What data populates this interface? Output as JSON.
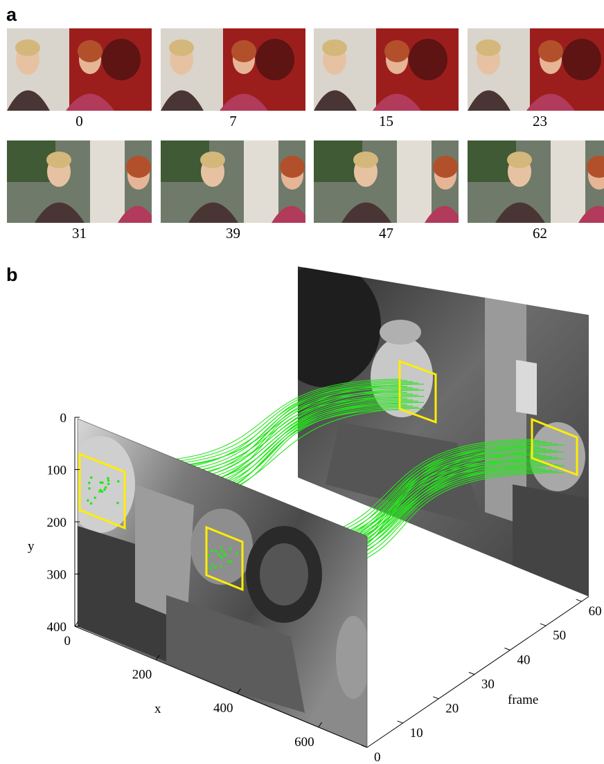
{
  "panel_a": {
    "label": "a",
    "frames": [
      {
        "frame": "0"
      },
      {
        "frame": "7"
      },
      {
        "frame": "15"
      },
      {
        "frame": "23"
      },
      {
        "frame": "31"
      },
      {
        "frame": "39"
      },
      {
        "frame": "47"
      },
      {
        "frame": "62"
      }
    ]
  },
  "panel_b": {
    "label": "b",
    "axes": {
      "y_label": "y",
      "x_label": "x",
      "z_label": "frame",
      "y_ticks": [
        "0",
        "100",
        "200",
        "300",
        "400"
      ],
      "x_ticks": [
        "0",
        "200",
        "400",
        "600"
      ],
      "z_ticks": [
        "0",
        "10",
        "20",
        "30",
        "40",
        "50",
        "60"
      ]
    }
  },
  "colors": {
    "track_green": "#27e51c",
    "face_box_yellow": "#ffee00",
    "door_red": "#9c1e1c",
    "sweater_magenta": "#b23a5a"
  }
}
